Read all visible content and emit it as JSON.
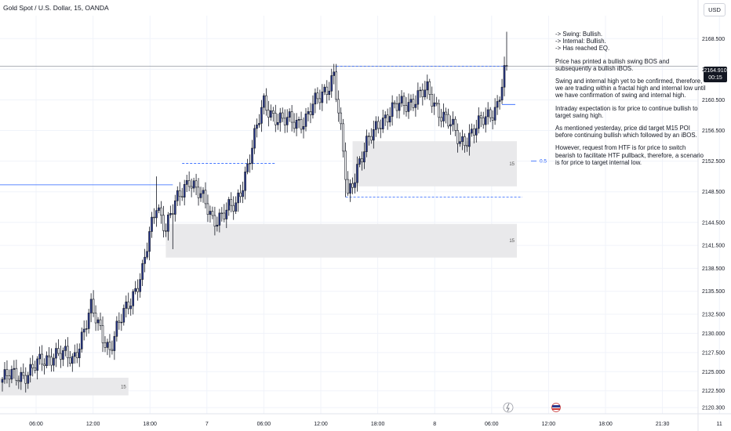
{
  "header": {
    "symbol_title": "Gold Spot / U.S. Dollar, 15, OANDA",
    "currency_label": "USD"
  },
  "price_tag": {
    "price": "2164.910",
    "countdown": "00:15"
  },
  "notes": {
    "lines_a": [
      "-> Swing: Bullish.",
      "-> Internal: Bullish.",
      "-> Has reached EQ."
    ],
    "para_1": "Price has printed a bullish swing BOS and subsequently a bullish iBOS.",
    "para_2": "Swing and internal high yet to be confirmed, therefore, we are trading within a fractal high and internal low until we have confirmation of swing and internal high.",
    "para_3": "Intraday expectation is for price to continue bullish to target swing high.",
    "para_4": "As mentioned yesterday, price did target M15 POI before continuing bullish which followed by an iBOS.",
    "para_5": "However, request from HTF is for price to switch bearish to facilitate HTF pullback, therefore, a scenario is for price to target internal low."
  },
  "annotations": {
    "zone_label": "15",
    "eq_label": "0.5"
  },
  "colors": {
    "bull_body": "#2a3a8f",
    "bear_body": "#ffffff",
    "wick": "#131722",
    "zone_fill": "#e9e9eb",
    "guide_line": "#2962ff",
    "grid": "#f0f3fa",
    "axis_text": "#131722"
  },
  "chart_data": {
    "type": "candlestick",
    "y_ticks": [
      "2168.500",
      "2164.500",
      "2160.500",
      "2156.500",
      "2152.500",
      "2148.500",
      "2144.500",
      "2141.500",
      "2138.500",
      "2135.500",
      "2132.500",
      "2130.000",
      "2127.500",
      "2125.000",
      "2122.500",
      "2120.300"
    ],
    "x_ticks": [
      "06:00",
      "12:00",
      "18:00",
      "7",
      "06:00",
      "12:00",
      "18:00",
      "8",
      "06:00",
      "12:00",
      "18:00",
      "21:30",
      "11"
    ],
    "ylim": [
      2119.5,
      2171.5
    ],
    "last_price": 2164.91,
    "bos_level": 2164.9,
    "ibos_level": 2152.2,
    "internal_low": 2147.8,
    "eq_level": 2152.5,
    "swing_ref_level": 2149.4,
    "zones": [
      {
        "label": "15",
        "from_candle": 0,
        "to_candle": 54,
        "top": 2124.2,
        "bottom": 2121.9
      },
      {
        "label": "15",
        "from_candle": 70,
        "to_candle": 216,
        "top": 2144.3,
        "bottom": 2139.9
      },
      {
        "label": "15",
        "from_candle": 150,
        "to_candle": 216,
        "top": 2155.1,
        "bottom": 2149.2
      }
    ],
    "candles": []
  }
}
